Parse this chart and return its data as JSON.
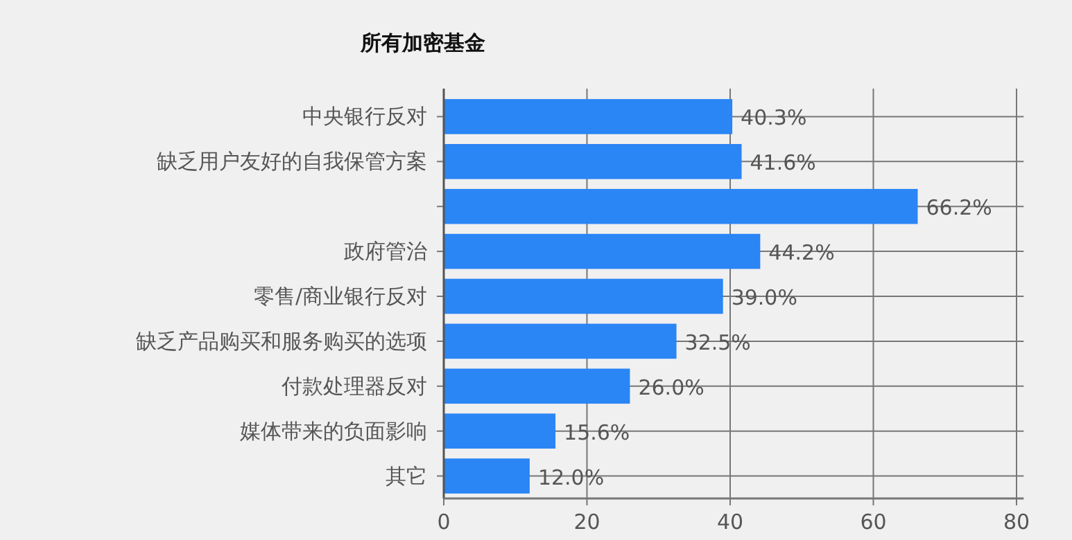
{
  "chart_data": {
    "type": "bar",
    "orientation": "horizontal",
    "title": "所有加密基金",
    "categories": [
      "中央银行反对",
      "缺乏用户友好的自我保管方案",
      null,
      "政府管治",
      "零售/商业银行反对",
      "缺乏产品购买和服务购买的选项",
      "付款处理器反对",
      "媒体带来的负面影响",
      "其它"
    ],
    "values": [
      40.3,
      41.6,
      66.2,
      44.2,
      39.0,
      32.5,
      26.0,
      15.6,
      12.0
    ],
    "value_labels": [
      "40.3%",
      "41.6%",
      "66.2%",
      "44.2%",
      "39.0%",
      "32.5%",
      "26.0%",
      "15.6%",
      "12.0%"
    ],
    "color": "#2a85f5",
    "xlim": [
      0,
      81
    ],
    "xticks": [
      0,
      20,
      40,
      60,
      80
    ],
    "grid": true
  }
}
